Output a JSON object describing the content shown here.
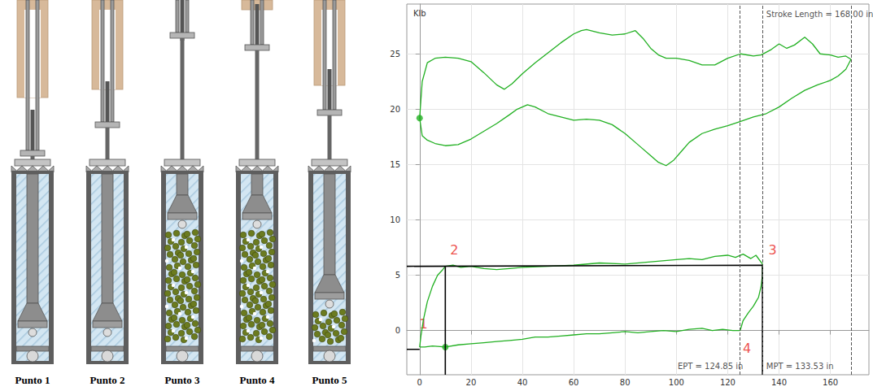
{
  "diagram": {
    "labels": [
      "Punto 1",
      "Punto 2",
      "Punto 3",
      "Punto 4",
      "Punto 5"
    ]
  },
  "chart_data": {
    "type": "line",
    "y_label": "Klb",
    "xlim": [
      -5,
      175
    ],
    "xticks": [
      0,
      20,
      40,
      60,
      80,
      100,
      120,
      140,
      160
    ],
    "ylim": [
      -4,
      29.5
    ],
    "yticks": [
      0,
      5,
      10,
      15,
      20,
      25
    ],
    "grid": true,
    "series": [
      {
        "type": "line",
        "color": "#22b022",
        "line_style": "solid",
        "x": [
          0,
          1,
          3,
          6,
          10,
          15,
          20,
          25,
          30,
          33,
          36,
          40,
          45,
          50,
          55,
          60,
          63,
          65,
          70,
          75,
          80,
          84,
          87,
          90,
          93,
          96,
          100,
          105,
          110,
          115,
          120,
          125,
          130,
          133,
          137,
          140,
          143,
          146,
          150,
          153,
          156,
          160,
          163,
          166,
          168,
          166,
          163,
          160,
          155,
          150,
          145,
          140,
          135,
          130,
          125,
          120,
          115,
          110,
          105,
          102,
          99,
          96,
          93,
          90,
          85,
          80,
          75,
          70,
          65,
          60,
          55,
          50,
          45,
          42,
          38,
          35,
          30,
          25,
          20,
          15,
          10,
          6,
          3,
          1,
          0
        ],
        "values": [
          19.2,
          22.5,
          24.2,
          24.6,
          24.7,
          24.6,
          24.3,
          23.3,
          22.2,
          21.8,
          22.3,
          23.2,
          24.2,
          25.1,
          26.0,
          26.8,
          27.1,
          27.2,
          26.9,
          26.7,
          26.8,
          27.1,
          26.4,
          25.5,
          24.9,
          24.6,
          24.6,
          24.4,
          24.0,
          24.0,
          24.6,
          25.0,
          24.8,
          24.9,
          25.4,
          25.9,
          25.5,
          25.8,
          26.5,
          25.9,
          25.0,
          24.9,
          24.7,
          24.8,
          24.5,
          23.6,
          23.0,
          22.6,
          22.2,
          21.7,
          21.0,
          20.2,
          19.6,
          19.3,
          18.9,
          18.5,
          18.2,
          17.8,
          17.0,
          16.2,
          15.4,
          14.9,
          15.2,
          15.8,
          16.8,
          17.8,
          18.6,
          19.0,
          19.1,
          19.0,
          19.3,
          19.6,
          20.2,
          20.4,
          20.0,
          19.5,
          18.7,
          18.0,
          17.3,
          16.8,
          16.7,
          16.9,
          17.2,
          17.6,
          19.2
        ]
      },
      {
        "type": "line",
        "color": "#22b022",
        "line_style": "solid",
        "x": [
          0,
          0.5,
          1.5,
          3,
          5,
          7,
          9,
          10,
          13,
          16,
          20,
          25,
          30,
          35,
          40,
          50,
          60,
          70,
          80,
          90,
          100,
          105,
          110,
          115,
          120,
          123,
          126,
          129,
          131,
          133.53,
          133.53,
          133,
          132,
          131,
          130,
          128,
          126,
          124.85,
          122,
          118,
          114,
          110,
          105,
          100,
          95,
          90,
          85,
          80,
          75,
          70,
          65,
          60,
          55,
          50,
          45,
          40,
          35,
          30,
          25,
          20,
          15,
          10,
          5,
          2,
          0
        ],
        "values": [
          -1.5,
          -0.5,
          1.0,
          2.6,
          4.0,
          5.0,
          5.5,
          5.8,
          5.9,
          5.7,
          5.8,
          5.6,
          5.5,
          5.6,
          5.7,
          5.8,
          5.9,
          6.1,
          6.0,
          6.2,
          6.4,
          6.5,
          6.4,
          6.7,
          6.8,
          6.6,
          6.9,
          6.5,
          6.8,
          6.0,
          5.0,
          4.0,
          3.0,
          2.6,
          2.2,
          1.6,
          0.9,
          0.0,
          0.0,
          0.1,
          0.0,
          0.2,
          0.1,
          -0.1,
          0.0,
          -0.1,
          -0.2,
          -0.1,
          -0.2,
          -0.3,
          -0.3,
          -0.4,
          -0.5,
          -0.6,
          -0.6,
          -0.8,
          -0.9,
          -1.0,
          -1.1,
          -1.2,
          -1.3,
          -1.5,
          -1.4,
          -1.5,
          -1.5
        ]
      },
      {
        "type": "scatter",
        "color": "#22b022",
        "marker": "circle",
        "x": [
          0,
          10
        ],
        "values": [
          19.2,
          -1.5
        ]
      },
      {
        "type": "line",
        "color": "#000000",
        "line_style": "solid",
        "x": [
          -5,
          0,
          0,
          -5,
          133.53,
          133.53,
          10,
          10,
          10,
          133.53,
          133.53
        ],
        "values": [
          -1.7,
          -1.7,
          null,
          5.8,
          5.9,
          null,
          -4,
          5.8,
          null,
          -4,
          5.9
        ]
      }
    ],
    "vlines": {
      "x": [
        124.85,
        133.53,
        168
      ],
      "line_style": "dashed",
      "color": "#555555"
    },
    "annotations": [
      {
        "text": "Stroke Length = 168.00 in",
        "x": 135,
        "y": 28.6
      },
      {
        "text": "EPT = 124.85 in",
        "x": 100.5,
        "y": -3.2
      },
      {
        "text": "MPT = 133.53 in",
        "x": 135,
        "y": -3.2
      }
    ],
    "point_labels": {
      "color": "#e8231b",
      "items": [
        {
          "text": "1",
          "x": 1.5,
          "y": 0.6
        },
        {
          "text": "2",
          "x": 13.5,
          "y": 7.3
        },
        {
          "text": "3",
          "x": 137.5,
          "y": 7.3
        },
        {
          "text": "4",
          "x": 127.5,
          "y": -1.6
        }
      ]
    }
  }
}
